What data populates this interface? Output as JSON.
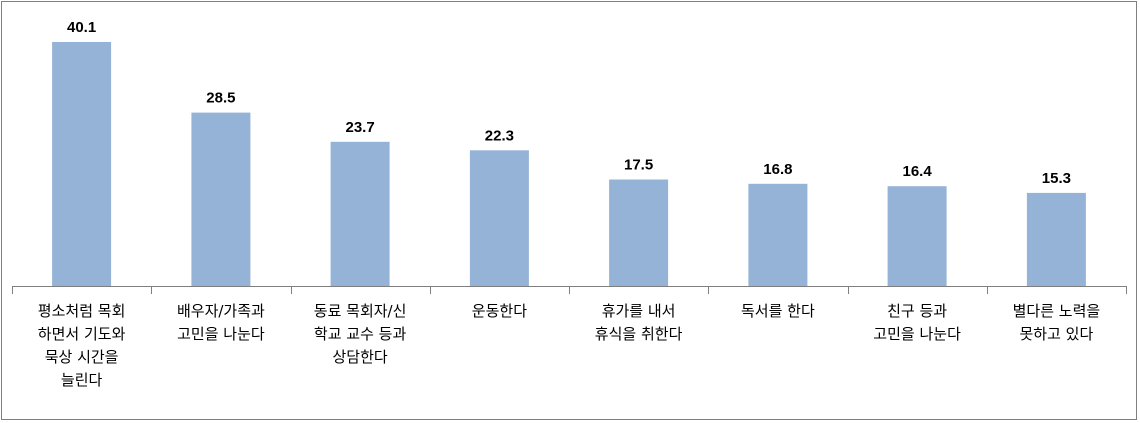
{
  "chart_data": {
    "type": "bar",
    "categories": [
      [
        "평소처럼 목회",
        "하면서 기도와",
        "묵상 시간을",
        "늘린다"
      ],
      [
        "배우자/가족과",
        "고민을 나눈다"
      ],
      [
        "동료 목회자/신",
        "학교 교수 등과",
        "상담한다"
      ],
      [
        "운동한다"
      ],
      [
        "휴가를 내서",
        "휴식을 취한다"
      ],
      [
        "독서를 한다"
      ],
      [
        "친구 등과",
        "고민을 나눈다"
      ],
      [
        "별다른 노력을",
        "못하고 있다"
      ]
    ],
    "values": [
      40.1,
      28.5,
      23.7,
      22.3,
      17.5,
      16.8,
      16.4,
      15.3
    ],
    "value_labels": [
      "40.1",
      "28.5",
      "23.7",
      "22.3",
      "17.5",
      "16.8",
      "16.4",
      "15.3"
    ],
    "ylim": [
      0,
      40.1
    ],
    "grid": false,
    "legend": "none",
    "bar_color": "#95b3d7",
    "axis_color": "#7f7f7f"
  }
}
